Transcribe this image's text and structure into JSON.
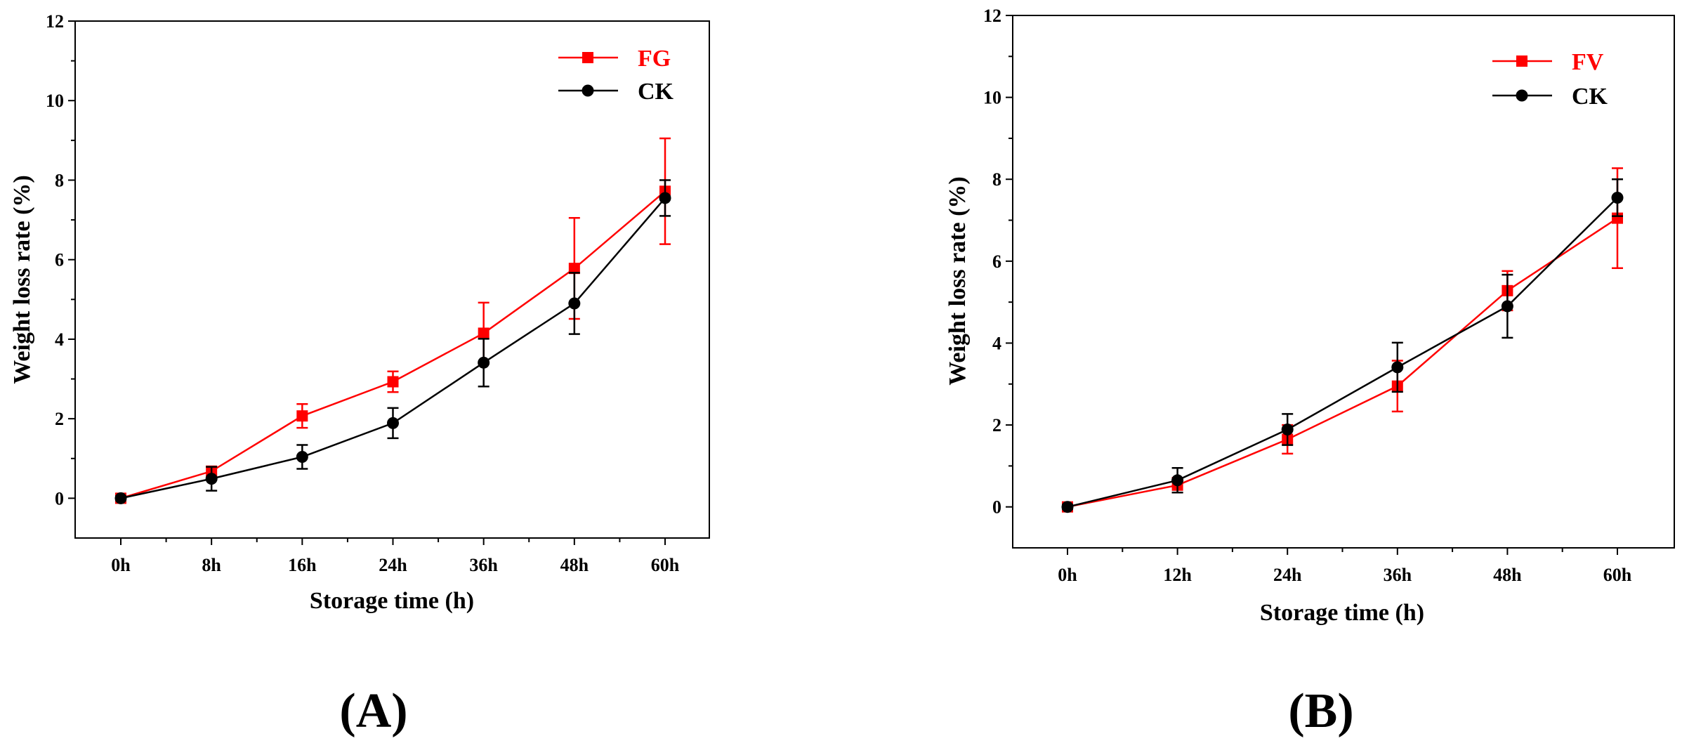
{
  "chart_data": [
    {
      "panel": "(A)",
      "type": "line",
      "categories": [
        "0h",
        "8h",
        "16h",
        "24h",
        "36h",
        "48h",
        "60h"
      ],
      "xlabel": "Storage time (h)",
      "ylabel": "Weight loss rate (%)",
      "ylim": [
        -1,
        12
      ],
      "yticks": [
        0,
        2,
        4,
        6,
        8,
        10,
        12
      ],
      "legend_position": "top-right",
      "series": [
        {
          "name": "FG",
          "color": "#ff0000",
          "marker": "square",
          "values": [
            0,
            0.68,
            2.07,
            2.93,
            4.15,
            5.78,
            7.72
          ],
          "errors": [
            0.05,
            0.12,
            0.3,
            0.26,
            0.77,
            1.27,
            1.33
          ]
        },
        {
          "name": "CK",
          "color": "#000000",
          "marker": "circle",
          "values": [
            0,
            0.49,
            1.04,
            1.89,
            3.41,
            4.9,
            7.55
          ],
          "errors": [
            0.05,
            0.3,
            0.3,
            0.38,
            0.6,
            0.77,
            0.45
          ]
        }
      ]
    },
    {
      "panel": "(B)",
      "type": "line",
      "categories": [
        "0h",
        "12h",
        "24h",
        "36h",
        "48h",
        "60h"
      ],
      "xlabel": "Storage time (h)",
      "ylabel": "Weight loss rate (%)",
      "ylim": [
        -1,
        12
      ],
      "yticks": [
        0,
        2,
        4,
        6,
        8,
        10,
        12
      ],
      "legend_position": "top-right",
      "series": [
        {
          "name": "FV",
          "color": "#ff0000",
          "marker": "square",
          "values": [
            0,
            0.53,
            1.65,
            2.95,
            5.28,
            7.05
          ],
          "errors": [
            0.05,
            0.18,
            0.35,
            0.62,
            0.48,
            1.22
          ]
        },
        {
          "name": "CK",
          "color": "#000000",
          "marker": "circle",
          "values": [
            0,
            0.65,
            1.89,
            3.41,
            4.9,
            7.55
          ],
          "errors": [
            0.05,
            0.3,
            0.38,
            0.6,
            0.77,
            0.45
          ]
        }
      ]
    }
  ]
}
